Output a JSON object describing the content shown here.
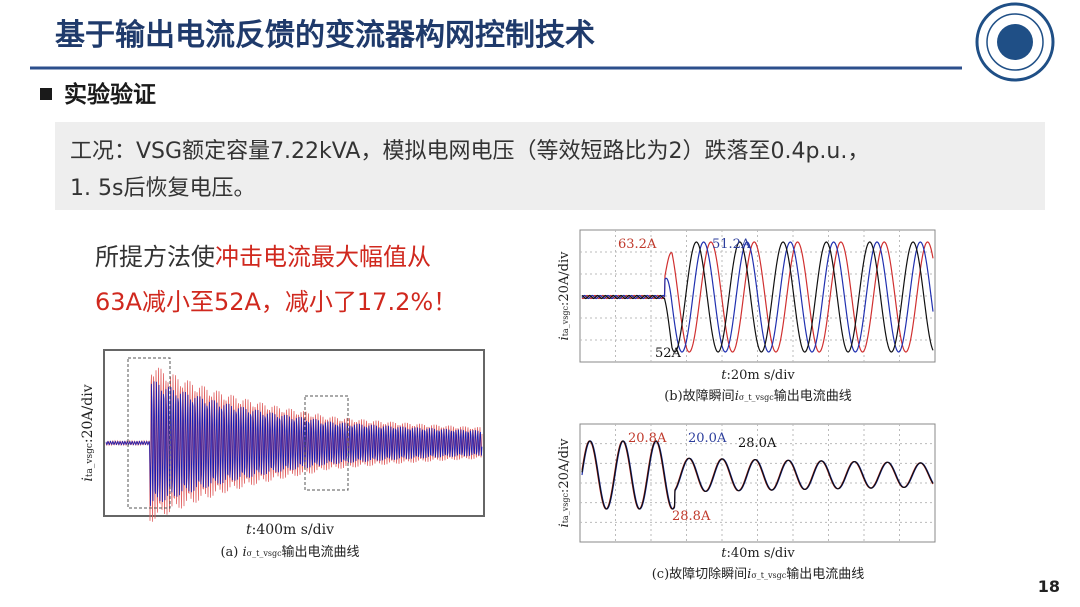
{
  "header": {
    "title": "基于输出电流反馈的变流器构网控制技术"
  },
  "section": "实验验证",
  "condition": [
    "工况：VSG额定容量7.22kVA，模拟电网电压（等效短路比为2）跌落至0.4p.u.，",
    "1. 5s后恢复电压。"
  ],
  "highlight": {
    "lead": "所提方法使",
    "emphasis": "冲击电流最大幅值从",
    "line2": "63A减小至52A，减小了17.2%！"
  },
  "figures": [
    {
      "y_label": {
        "var": "i",
        "sub": "ta_vsgc",
        "unit": ":20A/div"
      },
      "x_label": {
        "var": "t",
        "unit": ":400m s/div"
      },
      "caption": {
        "prefix": "(a) ",
        "var": "i",
        "sub": "σ_t_vsgc",
        "suffix": "输出电流曲线"
      }
    },
    {
      "y_label": {
        "var": "i",
        "sub": "ta_vsgc",
        "unit": ":20A/div"
      },
      "x_label": {
        "var": "t",
        "unit": ":20m s/div"
      },
      "caption": {
        "prefix": "(b)故障瞬间",
        "var": "i",
        "sub": "σ_t_vsgc",
        "suffix": "输出电流曲线"
      },
      "annotations": [
        "63.2A",
        "51.2A",
        "52A"
      ]
    },
    {
      "y_label": {
        "var": "i",
        "sub": "ta_vsgc",
        "unit": ":20A/div"
      },
      "x_label": {
        "var": "t",
        "unit": ":40m s/div"
      },
      "caption": {
        "prefix": "(c)故障切除瞬间",
        "var": "i",
        "sub": "σ_t_vsgc",
        "suffix": "输出电流曲线"
      },
      "annotations": [
        "20.8A",
        "20.0A",
        "28.0A",
        "28.8A"
      ]
    }
  ],
  "page_number": "18"
}
